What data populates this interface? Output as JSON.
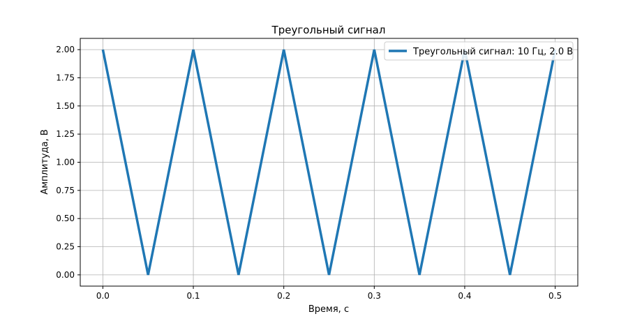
{
  "chart_data": {
    "type": "line",
    "title": "Треугольный сигнал",
    "xlabel": "Время, с",
    "ylabel": "Амплитуда, В",
    "xlim": [
      -0.025,
      0.525
    ],
    "ylim": [
      -0.1,
      2.1
    ],
    "xticks": [
      "0.0",
      "0.1",
      "0.2",
      "0.3",
      "0.4",
      "0.5"
    ],
    "yticks": [
      "0.00",
      "0.25",
      "0.50",
      "0.75",
      "1.00",
      "1.25",
      "1.50",
      "1.75",
      "2.00"
    ],
    "grid": true,
    "legend_position": "top-right",
    "series": [
      {
        "name": "Треугольный сигнал: 10 Гц, 2.0 В",
        "color": "#1f77b4",
        "x": [
          0.0,
          0.05,
          0.1,
          0.15,
          0.2,
          0.25,
          0.3,
          0.35,
          0.4,
          0.45,
          0.5
        ],
        "y": [
          2.0,
          0.0,
          2.0,
          0.0,
          2.0,
          0.0,
          2.0,
          0.0,
          2.0,
          0.0,
          2.0
        ]
      }
    ]
  }
}
